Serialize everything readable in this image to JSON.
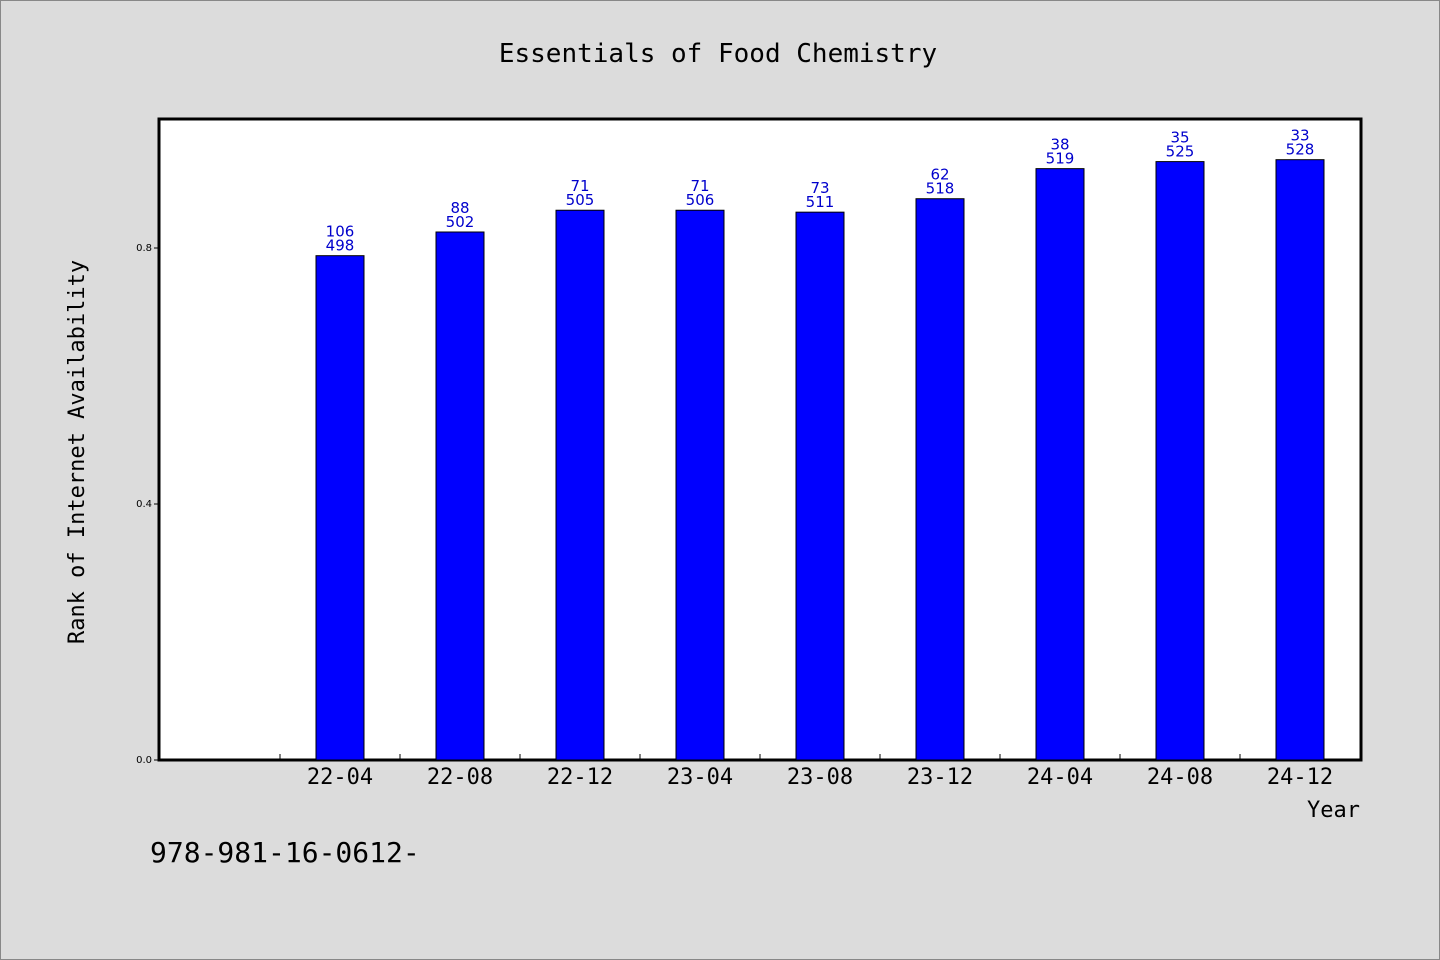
{
  "chart_data": {
    "type": "bar",
    "title": "Essentials of Food Chemistry",
    "xlabel": "Year",
    "ylabel": "Rank of Internet Availability",
    "ylim": [
      0,
      1.0
    ],
    "yticks": [
      0.0,
      0.4,
      0.8
    ],
    "ytick_labels": [
      "0.0",
      "0.4",
      "0.8"
    ],
    "categories": [
      "",
      "22-04",
      "22-08",
      "22-12",
      "23-04",
      "23-08",
      "23-12",
      "24-04",
      "24-08",
      "24-12"
    ],
    "values": [
      null,
      0.788,
      0.825,
      0.859,
      0.859,
      0.856,
      0.877,
      0.924,
      0.935,
      0.938
    ],
    "label_top": [
      "",
      "106",
      "88",
      "71",
      "71",
      "73",
      "62",
      "38",
      "35",
      "33"
    ],
    "label_bottom": [
      "",
      "498",
      "502",
      "505",
      "506",
      "511",
      "518",
      "519",
      "525",
      "528"
    ],
    "bar_color": "#0000ff",
    "label_color": "#0000cc",
    "grid": false,
    "legend": "none"
  },
  "footer": {
    "text": "978-981-16-0612-"
  },
  "colors": {
    "background": "#dcdcdc",
    "plot_background": "#ffffff"
  }
}
